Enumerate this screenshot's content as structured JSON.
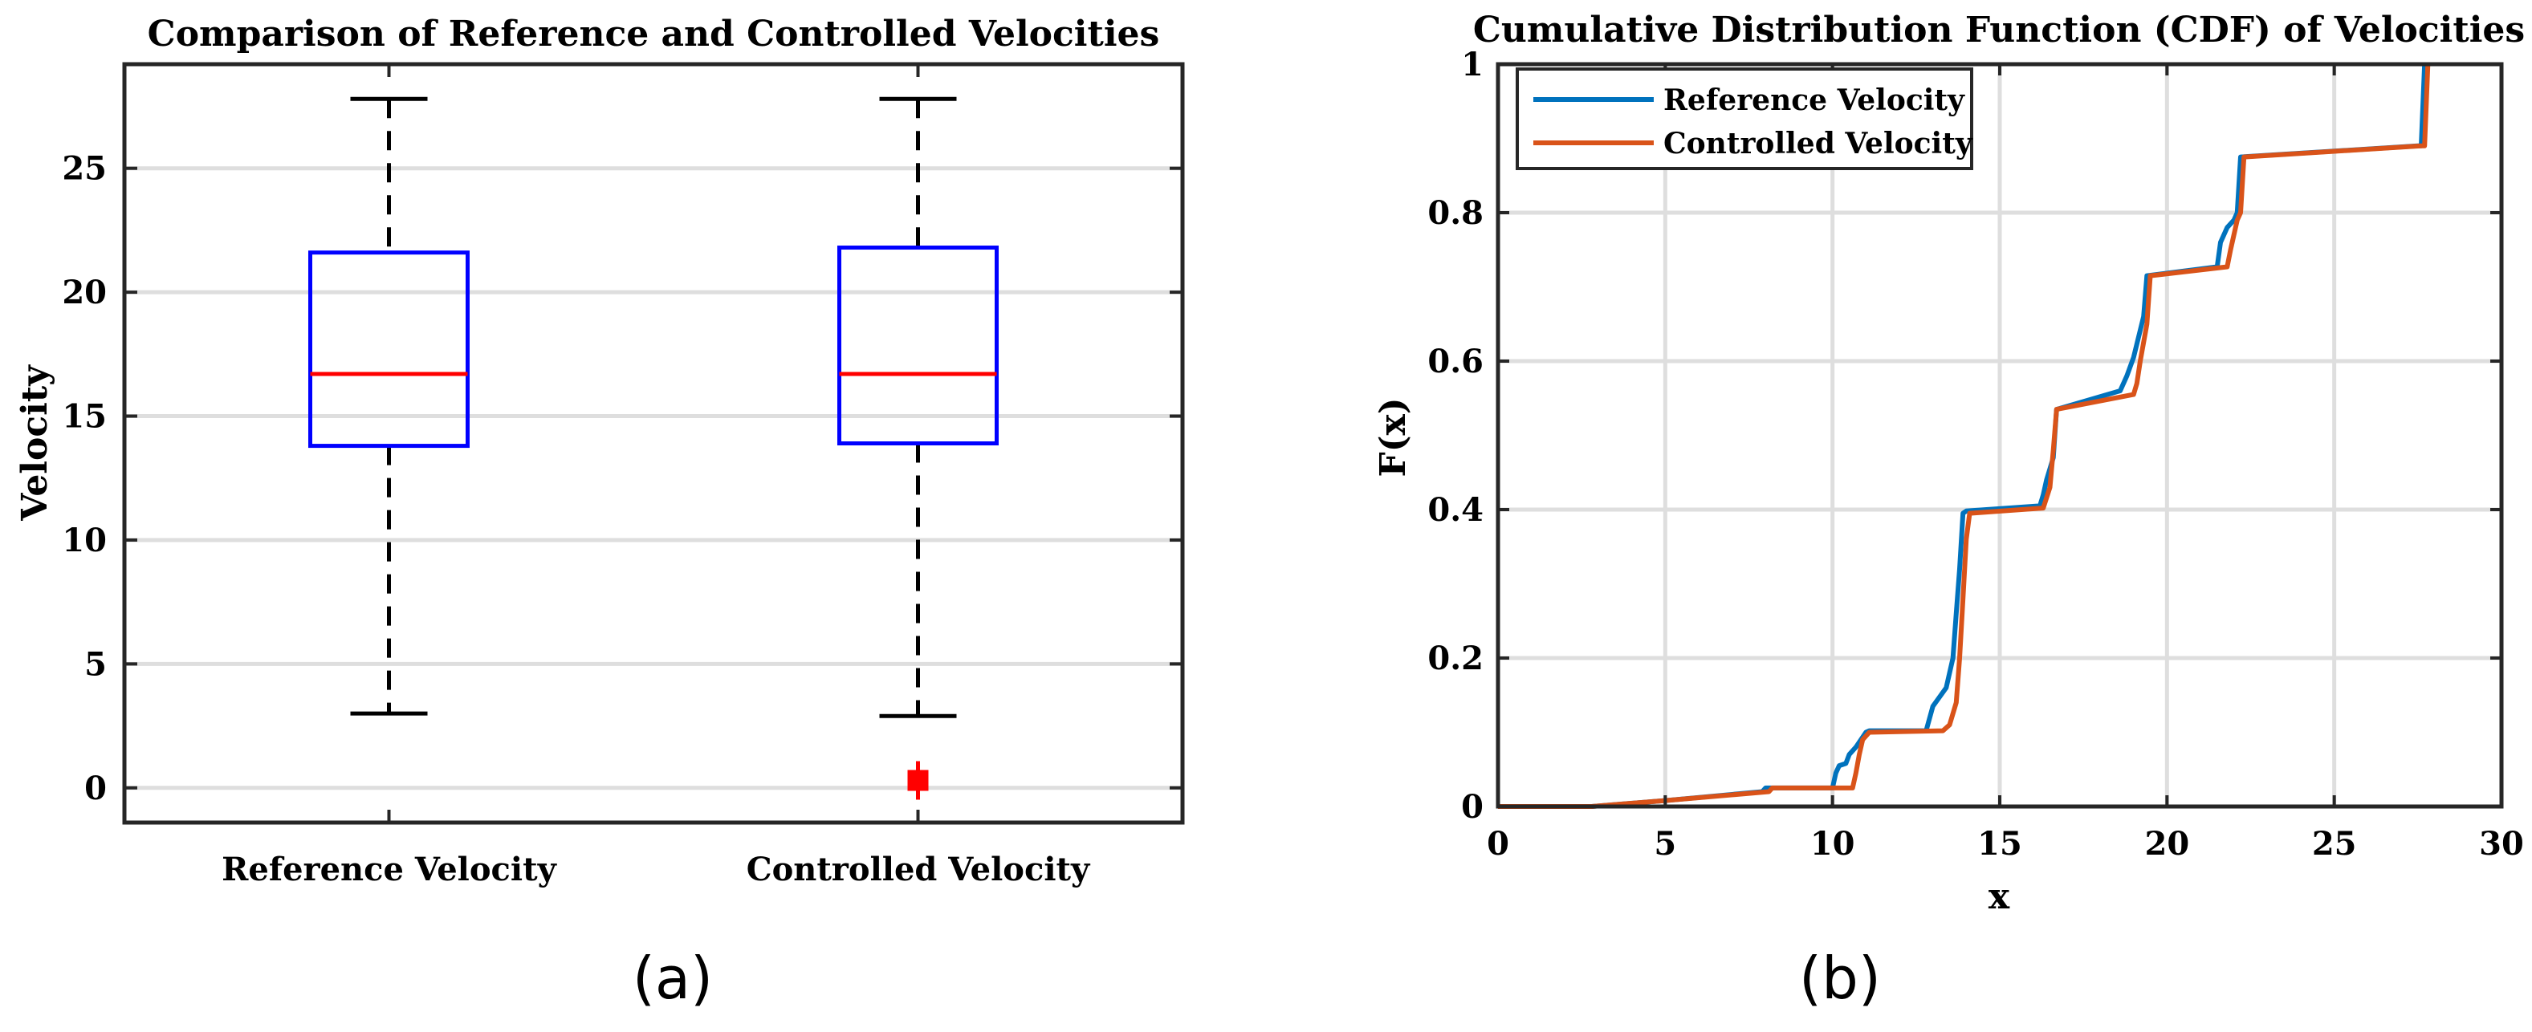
{
  "colors": {
    "box_edge": "#0000ff",
    "median": "#ff0000",
    "whisker": "#000000",
    "outlier": "#ff0000",
    "reference": "#0072bd",
    "controlled": "#d95319",
    "grid": "#dedede"
  },
  "panels": [
    "(a)",
    "(b)"
  ],
  "chart_data": [
    {
      "type": "box",
      "title": "Comparison of Reference and Controlled Velocities",
      "xlabel": "",
      "ylabel": "Velocity",
      "ylim": [
        -1.4,
        29.2
      ],
      "yticks": [
        0,
        5,
        10,
        15,
        20,
        25
      ],
      "grid": true,
      "categories": [
        "Reference Velocity",
        "Controlled Velocity"
      ],
      "boxes": [
        {
          "name": "Reference Velocity",
          "whisker_low": 3.0,
          "q1": 13.8,
          "median": 16.7,
          "q3": 21.6,
          "whisker_high": 27.8,
          "outliers": []
        },
        {
          "name": "Controlled Velocity",
          "whisker_low": 2.9,
          "q1": 13.9,
          "median": 16.7,
          "q3": 21.8,
          "whisker_high": 27.8,
          "outliers": [
            0.3
          ]
        }
      ]
    },
    {
      "type": "line",
      "title": "Cumulative Distribution Function (CDF) of Velocities",
      "xlabel": "x",
      "ylabel": "F(x)",
      "xlim": [
        0,
        30
      ],
      "ylim": [
        0,
        1
      ],
      "xticks": [
        0,
        5,
        10,
        15,
        20,
        25,
        30
      ],
      "yticks": [
        0,
        0.2,
        0.4,
        0.6,
        0.8,
        1
      ],
      "ytick_labels": [
        "0",
        "0.2",
        "0.4",
        "0.6",
        "0.8",
        "1"
      ],
      "grid": true,
      "legend": "top-left",
      "series": [
        {
          "name": "Reference Velocity",
          "x": [
            0,
            2.8,
            5,
            7.9,
            8.0,
            10.0,
            10.1,
            10.2,
            10.4,
            10.5,
            10.7,
            11.0,
            11.1,
            12.8,
            13.0,
            13.4,
            13.6,
            13.7,
            13.8,
            13.9,
            14.0,
            16.2,
            16.3,
            16.4,
            16.6,
            16.7,
            18.6,
            18.8,
            19.0,
            19.3,
            19.4,
            21.5,
            21.6,
            21.8,
            22.0,
            22.1,
            22.2,
            27.5,
            27.6,
            27.7
          ],
          "y": [
            0,
            0,
            0.008,
            0.02,
            0.025,
            0.025,
            0.045,
            0.055,
            0.058,
            0.07,
            0.08,
            0.1,
            0.102,
            0.102,
            0.135,
            0.16,
            0.2,
            0.26,
            0.32,
            0.395,
            0.398,
            0.405,
            0.42,
            0.44,
            0.47,
            0.535,
            0.56,
            0.58,
            0.605,
            0.66,
            0.715,
            0.727,
            0.76,
            0.78,
            0.79,
            0.8,
            0.875,
            0.89,
            0.89,
            1.0
          ]
        },
        {
          "name": "Controlled Velocity",
          "x": [
            0,
            2.8,
            5,
            8.1,
            8.2,
            10.6,
            10.7,
            10.8,
            10.9,
            11.1,
            13.3,
            13.5,
            13.7,
            13.8,
            13.9,
            14.0,
            14.1,
            16.3,
            16.5,
            16.6,
            16.7,
            19.0,
            19.1,
            19.2,
            19.4,
            19.5,
            21.8,
            21.9,
            22.1,
            22.2,
            22.3,
            27.6,
            27.7,
            27.8
          ],
          "y": [
            0,
            0,
            0.008,
            0.02,
            0.025,
            0.025,
            0.045,
            0.07,
            0.09,
            0.1,
            0.102,
            0.11,
            0.14,
            0.2,
            0.28,
            0.36,
            0.395,
            0.402,
            0.43,
            0.48,
            0.535,
            0.555,
            0.57,
            0.6,
            0.65,
            0.715,
            0.727,
            0.75,
            0.79,
            0.8,
            0.875,
            0.89,
            0.89,
            1.0
          ]
        }
      ]
    }
  ]
}
